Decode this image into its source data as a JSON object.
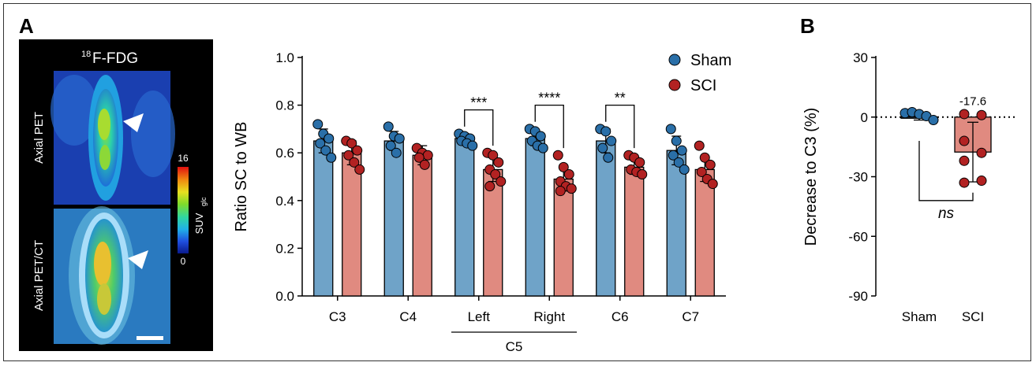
{
  "panels": {
    "a_label": "A",
    "b_label": "B"
  },
  "images": {
    "tracer_sup": "18",
    "tracer_main": "F-FDG",
    "top_label": "Axial PET",
    "bottom_label": "Axial PET/CT",
    "colorbar_max": "16",
    "colorbar_min": "0",
    "colorbar_label_main": "SUV",
    "colorbar_label_sub": "glc",
    "colorbar_colors": [
      "#0a1a8c",
      "#1f4fe0",
      "#20b0e8",
      "#30d6a0",
      "#7fdc2a",
      "#e8e020",
      "#f08a10",
      "#e01010"
    ]
  },
  "colors": {
    "sham_bar": "#6fa3c8",
    "sham_point": "#2a6fa8",
    "sci_bar": "#e08a80",
    "sci_point": "#b22222",
    "axis": "#000000"
  },
  "chart_data": [
    {
      "type": "bar",
      "ylabel": "Ratio SC to WB",
      "ylim": [
        0,
        1.0
      ],
      "yticks": [
        "0.0",
        "0.2",
        "0.4",
        "0.6",
        "0.8",
        "1.0"
      ],
      "categories": [
        "C3",
        "C4",
        "Left",
        "Right",
        "C6",
        "C7"
      ],
      "group_label": "C5",
      "legend": [
        "Sham",
        "SCI"
      ],
      "legend_position": "top-right",
      "series": [
        {
          "name": "Sham",
          "values": [
            0.65,
            0.65,
            0.66,
            0.66,
            0.65,
            0.61
          ],
          "errors": [
            0.05,
            0.04,
            0.02,
            0.03,
            0.05,
            0.06
          ],
          "points": [
            [
              0.72,
              0.68,
              0.66,
              0.64,
              0.61,
              0.58
            ],
            [
              0.71,
              0.67,
              0.66,
              0.63,
              0.6
            ],
            [
              0.68,
              0.67,
              0.66,
              0.65,
              0.64,
              0.63
            ],
            [
              0.7,
              0.69,
              0.67,
              0.65,
              0.63,
              0.62
            ],
            [
              0.7,
              0.69,
              0.65,
              0.62,
              0.58
            ],
            [
              0.7,
              0.65,
              0.61,
              0.59,
              0.56,
              0.53
            ]
          ]
        },
        {
          "name": "SCI",
          "values": [
            0.6,
            0.59,
            0.53,
            0.49,
            0.54,
            0.53
          ],
          "errors": [
            0.05,
            0.04,
            0.05,
            0.05,
            0.03,
            0.05
          ],
          "points": [
            [
              0.65,
              0.64,
              0.61,
              0.59,
              0.56,
              0.53
            ],
            [
              0.62,
              0.6,
              0.59,
              0.58,
              0.55
            ],
            [
              0.6,
              0.59,
              0.56,
              0.53,
              0.51,
              0.48,
              0.46
            ],
            [
              0.59,
              0.54,
              0.51,
              0.48,
              0.46,
              0.45,
              0.44
            ],
            [
              0.59,
              0.58,
              0.56,
              0.53,
              0.52,
              0.51
            ],
            [
              0.63,
              0.58,
              0.55,
              0.52,
              0.49,
              0.47
            ]
          ]
        }
      ],
      "annotations": [
        {
          "category": "Left",
          "text": "***"
        },
        {
          "category": "Right",
          "text": "****"
        },
        {
          "category": "C6",
          "text": "**"
        }
      ]
    },
    {
      "type": "bar",
      "ylabel": "Decrease to C3 (%)",
      "ylim": [
        -90,
        30
      ],
      "yticks": [
        "30",
        "0",
        "-30",
        "-60",
        "-90"
      ],
      "categories": [
        "Sham",
        "SCI"
      ],
      "values": [
        0,
        -17.6
      ],
      "errors": [
        1.5,
        15
      ],
      "value_label": "-17.6",
      "points": [
        [
          2,
          2.5,
          1.5,
          0.5,
          -1.5
        ],
        [
          1.5,
          1,
          -12,
          -18,
          -22,
          -32,
          -33
        ]
      ],
      "reference_line": 0,
      "significance": "ns"
    }
  ]
}
